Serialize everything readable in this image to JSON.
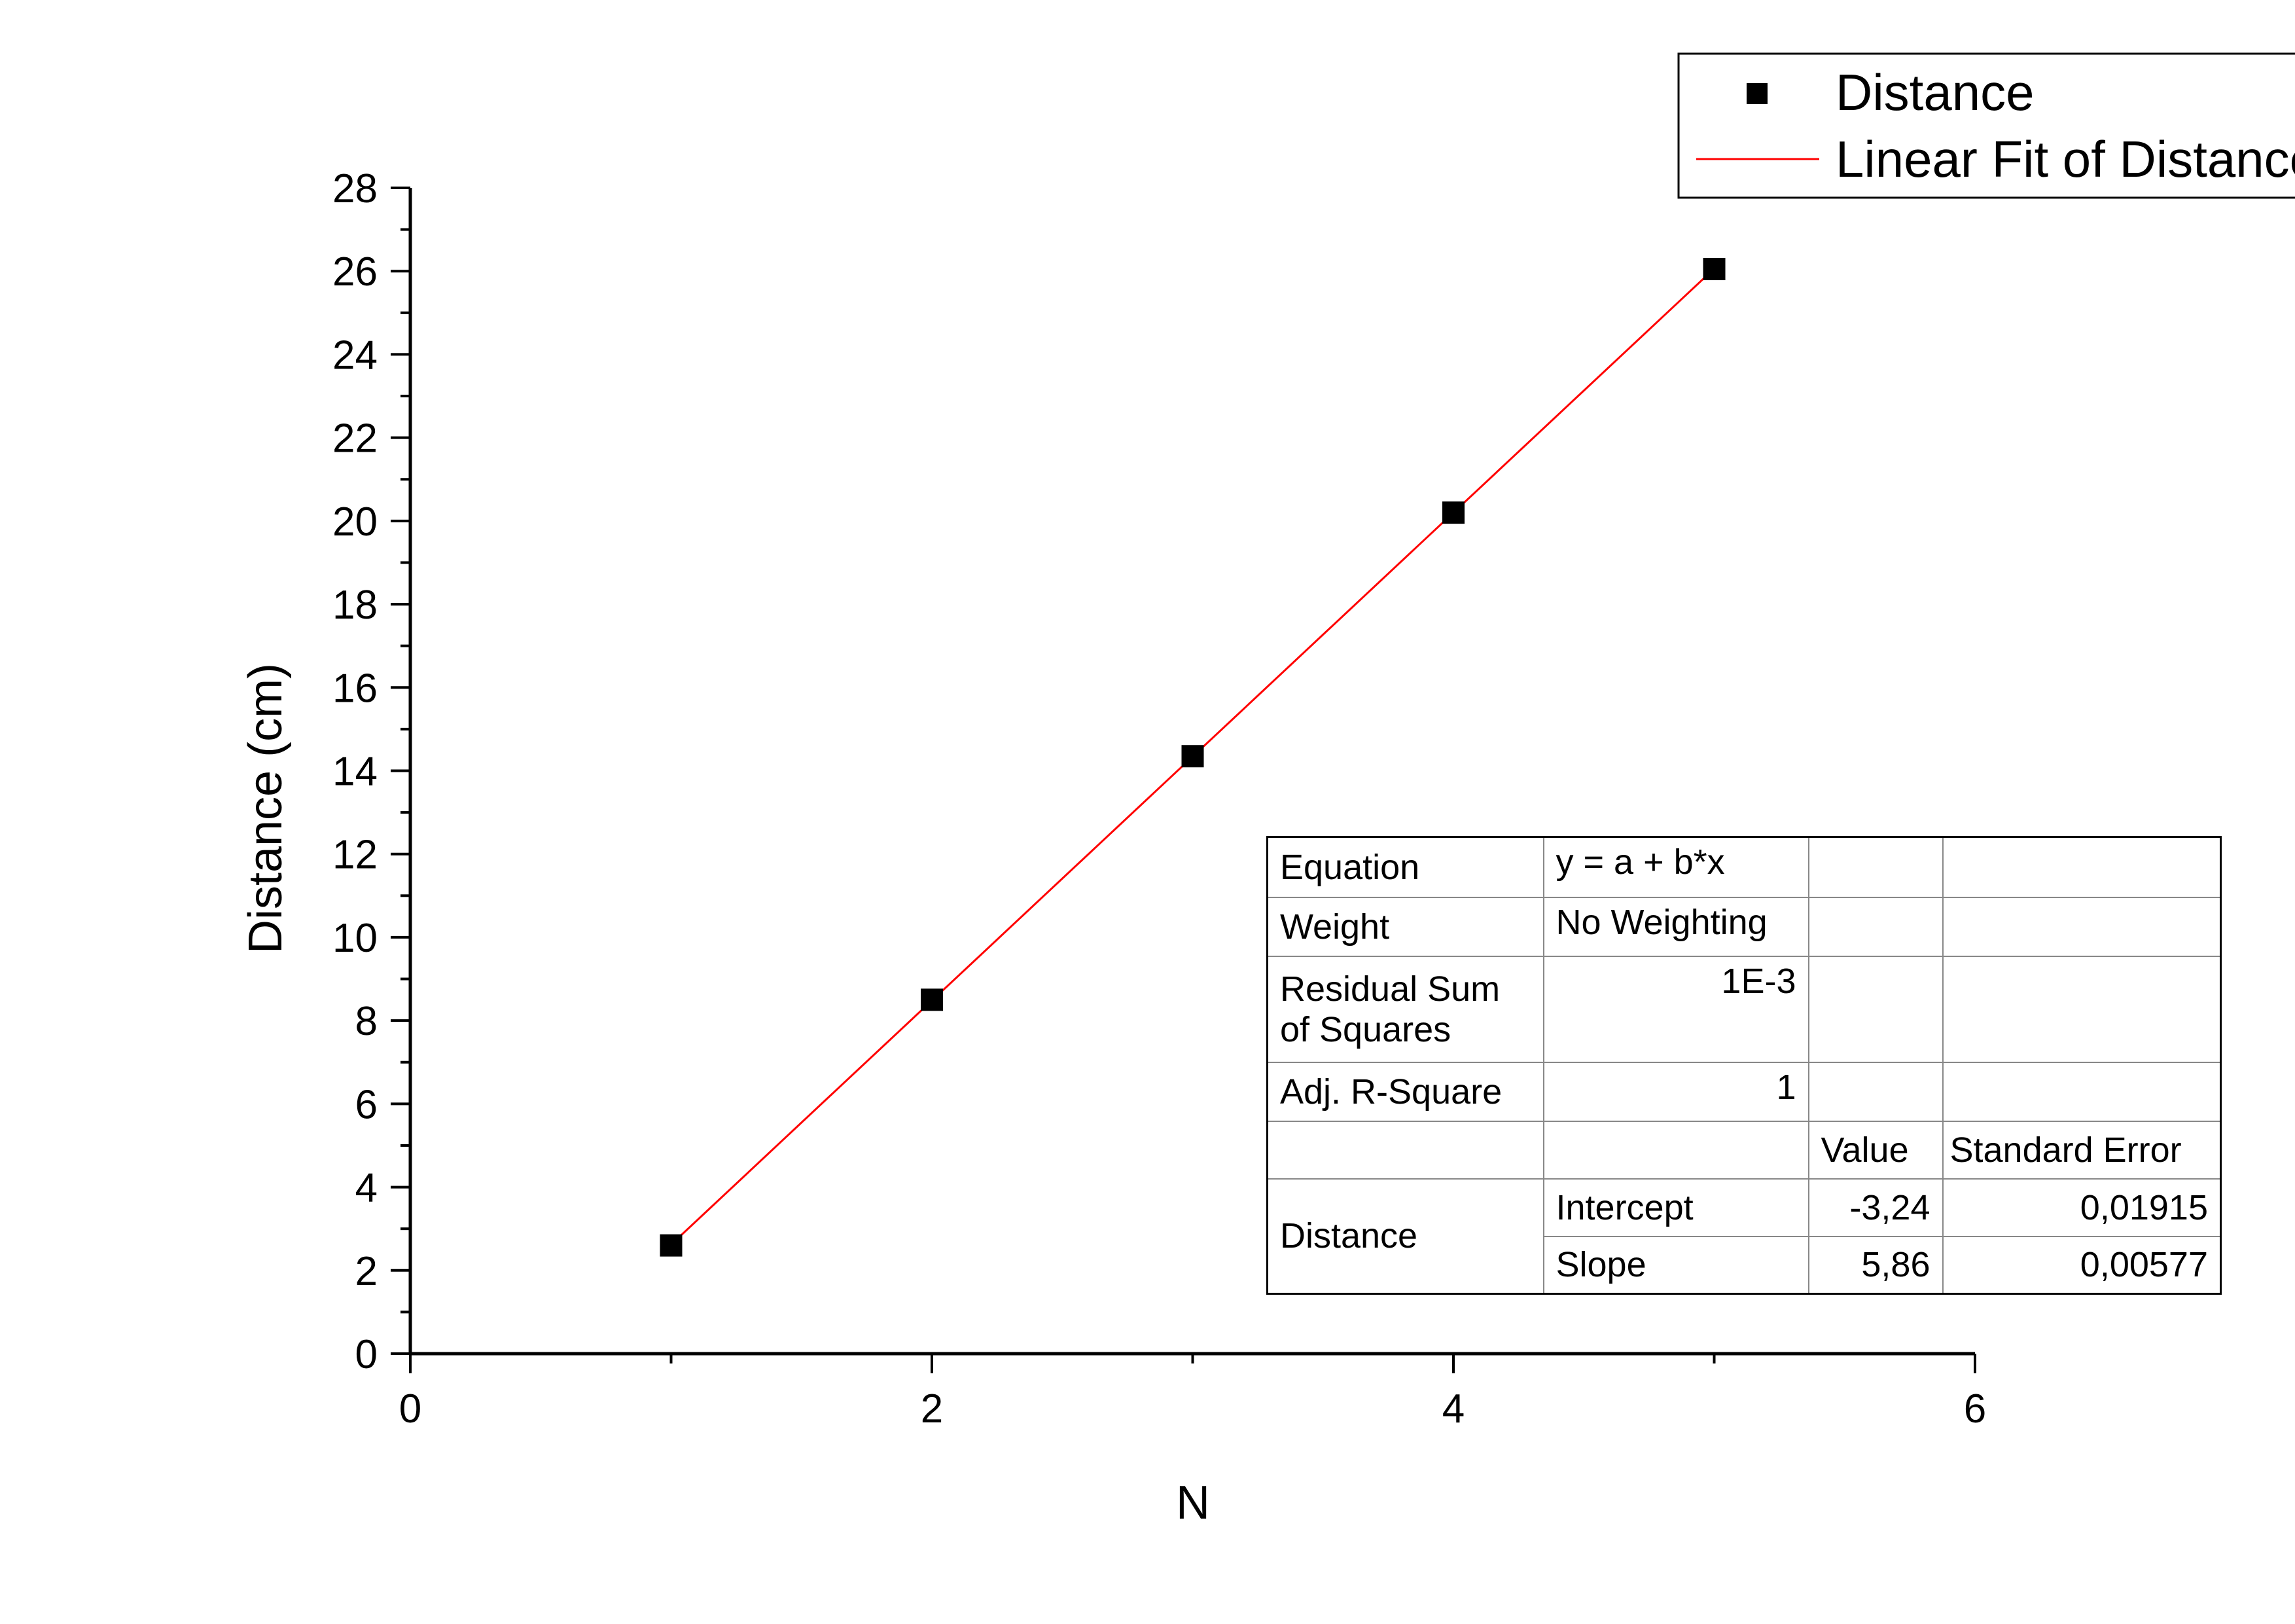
{
  "chart_data": {
    "type": "scatter",
    "xlabel": "N",
    "ylabel": "Distance (cm)",
    "xlim": [
      0,
      6
    ],
    "ylim": [
      0,
      28
    ],
    "x_ticks": [
      "0",
      "2",
      "4",
      "6"
    ],
    "y_ticks": [
      "0",
      "2",
      "4",
      "6",
      "8",
      "10",
      "12",
      "14",
      "16",
      "18",
      "20",
      "22",
      "24",
      "26",
      "28"
    ],
    "series": [
      {
        "name": "Distance",
        "marker": "square",
        "color": "#000000",
        "x": [
          1,
          2,
          3,
          4,
          5
        ],
        "y": [
          2.6,
          8.5,
          14.35,
          20.2,
          26.05
        ]
      },
      {
        "name": "Linear Fit of Distance",
        "kind": "line",
        "color": "#ff0000",
        "intercept": -3.24,
        "slope": 5.86,
        "x_range": [
          1,
          5
        ]
      }
    ],
    "legend": {
      "placement": "top-right"
    },
    "grid": false
  },
  "fit_table": {
    "equation_label": "Equation",
    "equation_value": "y = a + b*x",
    "weight_label": "Weight",
    "weight_value": "No Weighting",
    "rss_label_line1": "Residual Sum",
    "rss_label_line2": "of Squares",
    "rss_value": "1E-3",
    "adjr_label": "Adj. R-Square",
    "adjr_value": "1",
    "value_header": "Value",
    "stderr_header": "Standard Error",
    "group_label": "Distance",
    "intercept_label": "Intercept",
    "intercept_value": "-3,24",
    "intercept_error": "0,01915",
    "slope_label": "Slope",
    "slope_value": "5,86",
    "slope_error": "0,00577"
  }
}
